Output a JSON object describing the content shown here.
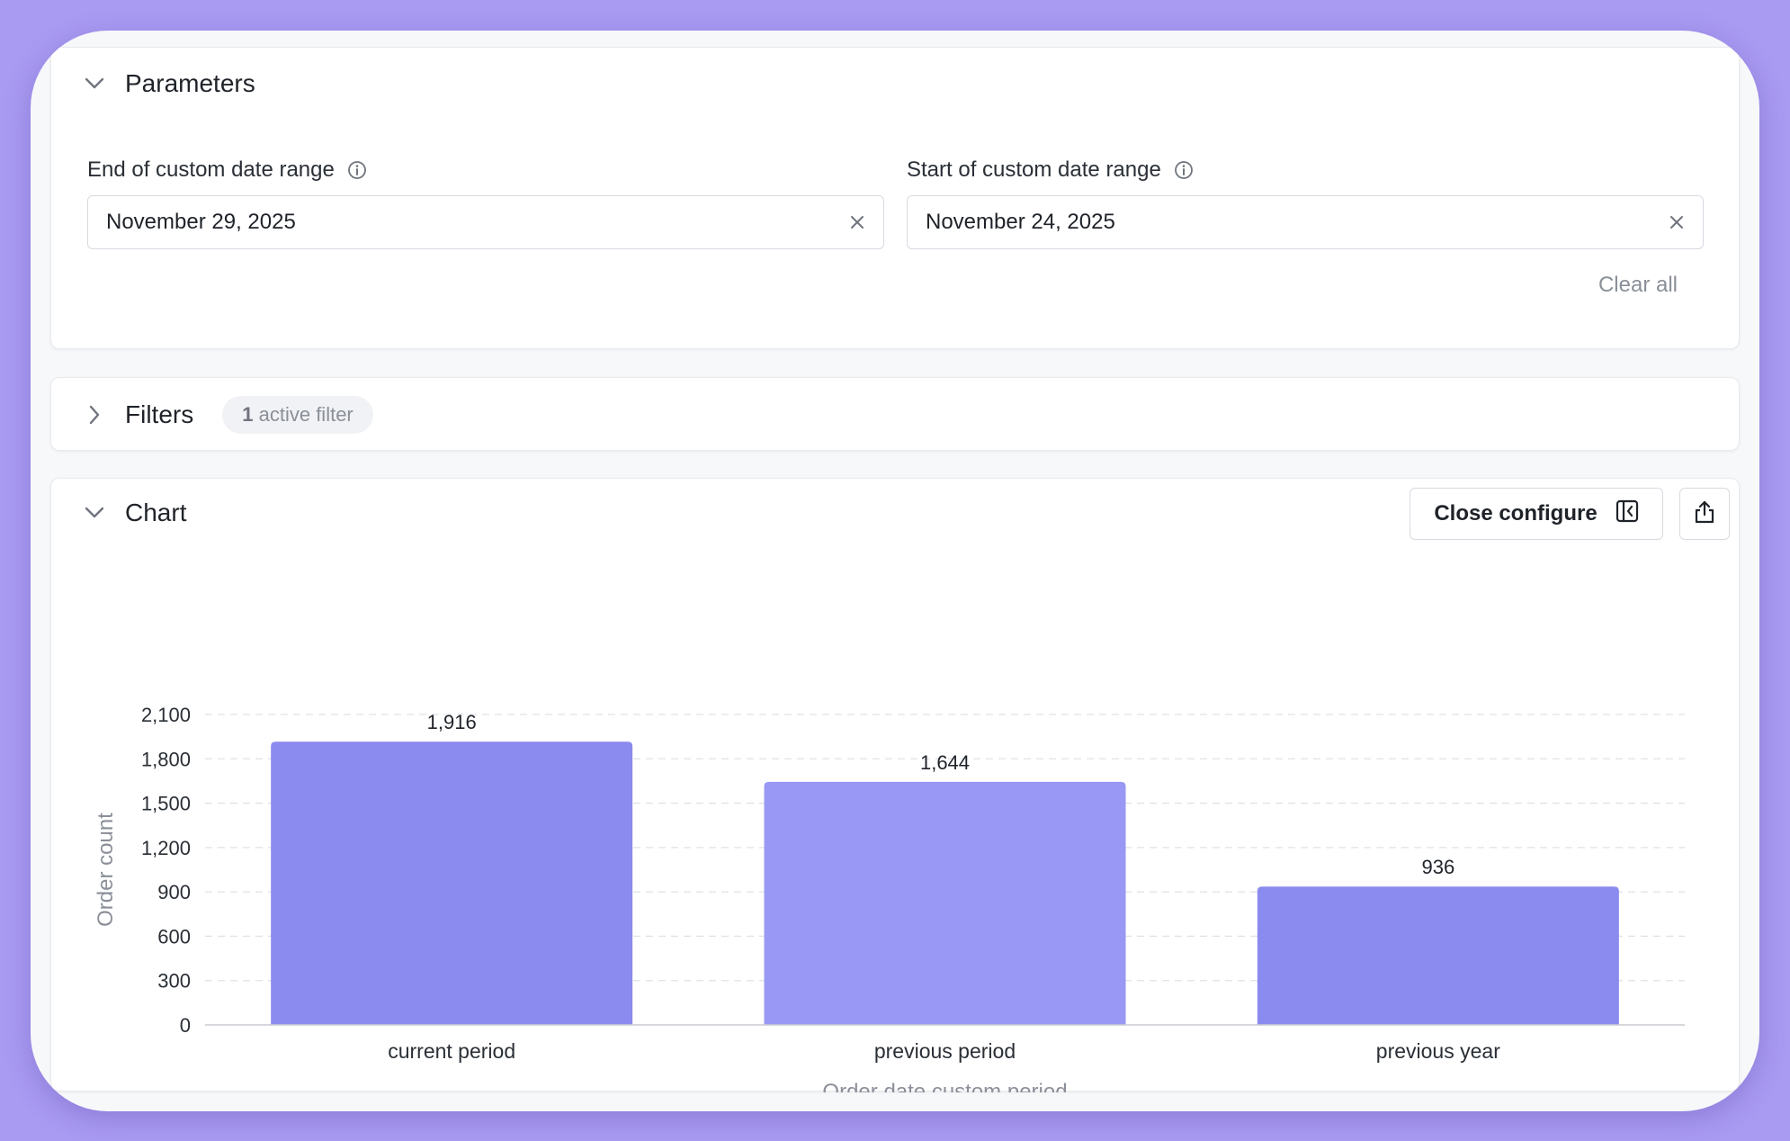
{
  "parameters": {
    "title": "Parameters",
    "end_field": {
      "label": "End of custom date range",
      "value": "November 29, 2025"
    },
    "start_field": {
      "label": "Start of custom date range",
      "value": "November 24, 2025"
    },
    "clear_all": "Clear all"
  },
  "filters": {
    "title": "Filters",
    "badge_count": "1",
    "badge_text": "active filter"
  },
  "chart_panel": {
    "title": "Chart",
    "close_configure": "Close configure",
    "icons": {
      "close_configure": "sidebar-collapse-icon",
      "share": "share-icon",
      "expand": "chevron-down-icon",
      "collapsed": "chevron-right-icon",
      "info": "info-icon",
      "clear": "close-icon"
    }
  },
  "chart_data": {
    "type": "bar",
    "categories": [
      "current period",
      "previous period",
      "previous year"
    ],
    "values": [
      1916,
      1644,
      936
    ],
    "data_labels": [
      "1,916",
      "1,644",
      "936"
    ],
    "xlabel": "Order date custom period",
    "ylabel": "Order count",
    "ylim": [
      0,
      2100
    ],
    "yticks": [
      0,
      300,
      600,
      900,
      1200,
      1500,
      1800,
      2100
    ],
    "ytick_labels": [
      "0",
      "300",
      "600",
      "900",
      "1,200",
      "1,500",
      "1,800",
      "2,100"
    ],
    "grid": true,
    "bar_colors": [
      "#8b8aee",
      "#9998f4",
      "#8b8aee"
    ]
  }
}
